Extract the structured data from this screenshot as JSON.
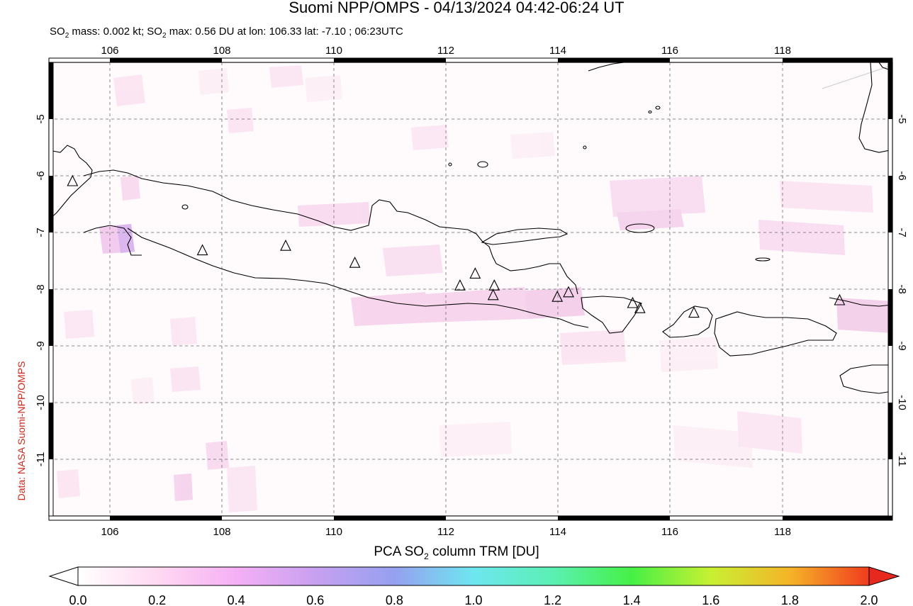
{
  "header": {
    "title": "Suomi NPP/OMPS - 04/13/2024 04:42-06:24 UT",
    "subtitle_prefix": "SO",
    "subtitle_sub": "2",
    "subtitle_mid": " mass: 0.002 kt; SO",
    "subtitle_sub2": "2",
    "subtitle_rest": " max: 0.56 DU at lon: 106.33 lat: -7.10 ; 06:23UTC"
  },
  "credit": "Data: NASA Suomi-NPP/OMPS",
  "map": {
    "lon_range": [
      105,
      120
    ],
    "lat_range": [
      -12,
      -4
    ],
    "lon_ticks": [
      "106",
      "108",
      "110",
      "112",
      "114",
      "116",
      "118"
    ],
    "lat_ticks": [
      "-5",
      "-6",
      "-7",
      "-8",
      "-9",
      "-10",
      "-11"
    ],
    "volcano_marker": "triangle-icon",
    "volcanoes": [
      {
        "lon": 105.42,
        "lat": -6.1
      },
      {
        "lon": 107.73,
        "lat": -7.32
      },
      {
        "lon": 109.21,
        "lat": -7.24
      },
      {
        "lon": 110.44,
        "lat": -7.54
      },
      {
        "lon": 112.31,
        "lat": -7.94
      },
      {
        "lon": 112.58,
        "lat": -7.73
      },
      {
        "lon": 112.92,
        "lat": -7.94
      },
      {
        "lon": 112.9,
        "lat": -8.11
      },
      {
        "lon": 114.04,
        "lat": -8.14
      },
      {
        "lon": 114.24,
        "lat": -8.06
      },
      {
        "lon": 115.38,
        "lat": -8.25
      },
      {
        "lon": 115.51,
        "lat": -8.34
      },
      {
        "lon": 116.47,
        "lat": -8.42
      },
      {
        "lon": 119.06,
        "lat": -8.2
      }
    ],
    "so2_max_location": {
      "lon": 106.33,
      "lat": -7.1,
      "value": 0.56
    }
  },
  "colorbar": {
    "title_prefix": "PCA SO",
    "title_sub": "2",
    "title_rest": " column TRM [DU]",
    "min": 0.0,
    "max": 2.0,
    "labels": [
      "0.0",
      "0.2",
      "0.4",
      "0.6",
      "0.8",
      "1.0",
      "1.2",
      "1.4",
      "1.6",
      "1.8",
      "2.0"
    ],
    "colors": [
      "#ffffff",
      "#ffd9f2",
      "#f5b0f5",
      "#c8a0f0",
      "#96a0f0",
      "#6ee6f0",
      "#5af0b4",
      "#46f046",
      "#c8f032",
      "#f5b428",
      "#f03c1e",
      "#e6281e"
    ]
  }
}
